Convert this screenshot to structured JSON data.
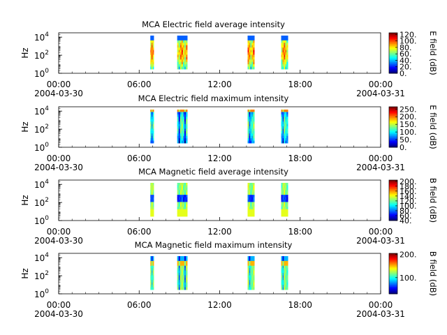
{
  "chart_data": [
    {
      "type": "heatmap",
      "title": "MCA  Electric field average intensity",
      "ylabel": "Hz",
      "x_ticks": [
        "00:00",
        "06:00",
        "12:00",
        "18:00",
        "00:00"
      ],
      "x_dates": [
        "2004-03-30",
        "2004-03-31"
      ],
      "xlim": [
        "2004-03-30 00:00",
        "2004-03-31 00:00"
      ],
      "y_ticks": [
        "10",
        "10",
        "10"
      ],
      "y_tick_exponents": [
        "0",
        "2",
        "4"
      ],
      "ylim": [
        1,
        30000
      ],
      "y_scale": "log",
      "colorbar": {
        "label": "E field (dB)",
        "ticks": [
          "0.",
          "20.",
          "40.",
          "60.",
          "80.",
          "100.",
          "120."
        ],
        "range": [
          0,
          125
        ]
      },
      "data_intervals": [
        {
          "start": "06:50",
          "end": "07:05"
        },
        {
          "start": "08:50",
          "end": "09:35"
        },
        {
          "start": "14:05",
          "end": "14:35"
        },
        {
          "start": "16:35",
          "end": "17:05"
        }
      ],
      "intensity_profile": "band"
    },
    {
      "type": "heatmap",
      "title": "MCA  Electric field maximum intensity",
      "ylabel": "Hz",
      "x_ticks": [
        "00:00",
        "06:00",
        "12:00",
        "18:00",
        "00:00"
      ],
      "x_dates": [
        "2004-03-30",
        "2004-03-31"
      ],
      "xlim": [
        "2004-03-30 00:00",
        "2004-03-31 00:00"
      ],
      "y_ticks": [
        "10",
        "10",
        "10"
      ],
      "y_tick_exponents": [
        "0",
        "2",
        "4"
      ],
      "ylim": [
        1,
        30000
      ],
      "y_scale": "log",
      "colorbar": {
        "label": "E field (dB)",
        "ticks": [
          "0.",
          "50.",
          "100.",
          "150.",
          "200.",
          "250."
        ],
        "range": [
          0,
          265
        ]
      },
      "data_intervals": [
        {
          "start": "06:50",
          "end": "07:05"
        },
        {
          "start": "08:50",
          "end": "09:35"
        },
        {
          "start": "14:05",
          "end": "14:35"
        },
        {
          "start": "16:35",
          "end": "17:05"
        }
      ],
      "intensity_profile": "low-top"
    },
    {
      "type": "heatmap",
      "title": "MCA  Magnetic field average intensity",
      "ylabel": "Hz",
      "x_ticks": [
        "00:00",
        "06:00",
        "12:00",
        "18:00",
        "00:00"
      ],
      "x_dates": [
        "2004-03-30",
        "2004-03-31"
      ],
      "xlim": [
        "2004-03-30 00:00",
        "2004-03-31 00:00"
      ],
      "y_ticks": [
        "10",
        "10",
        "10"
      ],
      "y_tick_exponents": [
        "0",
        "2",
        "4"
      ],
      "ylim": [
        1,
        30000
      ],
      "y_scale": "log",
      "colorbar": {
        "label": "B field (dB)",
        "ticks": [
          "40.",
          "60.",
          "80.",
          "100.",
          "120.",
          "140.",
          "160.",
          "180.",
          "200."
        ],
        "range": [
          40,
          205
        ]
      },
      "data_intervals": [
        {
          "start": "06:50",
          "end": "07:05"
        },
        {
          "start": "08:50",
          "end": "09:35"
        },
        {
          "start": "14:05",
          "end": "14:35"
        },
        {
          "start": "16:35",
          "end": "17:05"
        }
      ],
      "intensity_profile": "magnetic"
    },
    {
      "type": "heatmap",
      "title": "MCA  Magnetic field maximum intensity",
      "ylabel": "Hz",
      "x_ticks": [
        "00:00",
        "06:00",
        "12:00",
        "18:00",
        "00:00"
      ],
      "x_dates": [
        "2004-03-30",
        "2004-03-31"
      ],
      "xlim": [
        "2004-03-30 00:00",
        "2004-03-31 00:00"
      ],
      "y_ticks": [
        "10",
        "10",
        "10"
      ],
      "y_tick_exponents": [
        "0",
        "2",
        "4"
      ],
      "ylim": [
        1,
        30000
      ],
      "y_scale": "log",
      "colorbar": {
        "label": "B field (dB)",
        "ticks": [
          "100.",
          "200."
        ],
        "range": [
          30,
          205
        ]
      },
      "data_intervals": [
        {
          "start": "06:50",
          "end": "07:05"
        },
        {
          "start": "08:50",
          "end": "09:35"
        },
        {
          "start": "14:05",
          "end": "14:35"
        },
        {
          "start": "16:35",
          "end": "17:05"
        }
      ],
      "intensity_profile": "magnetic-max"
    }
  ]
}
